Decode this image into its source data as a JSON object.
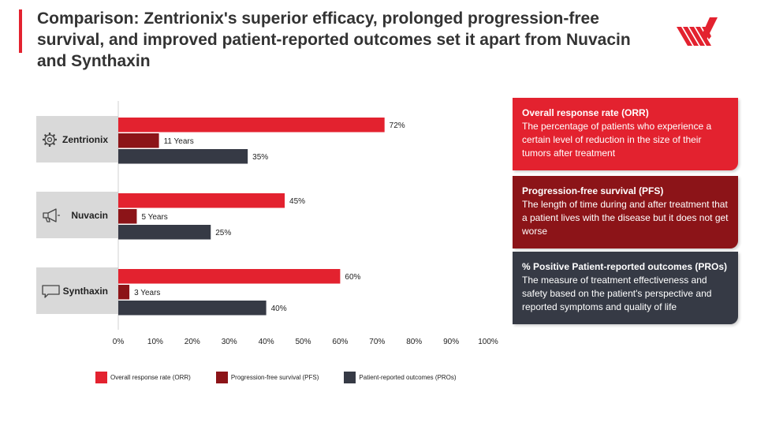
{
  "title": "Comparison: Zentrionix's superior efficacy, prolonged progression-free survival, and improved patient-reported outcomes set it apart from Nuvacin and Synthaxin",
  "colors": {
    "orr": "#e3222f",
    "pfs": "#8c1418",
    "pros": "#363a45",
    "category_bg": "#d9d9d9",
    "accent": "#e3222f"
  },
  "chart_data": {
    "type": "bar",
    "orientation": "horizontal",
    "categories": [
      {
        "name": "Zentrionix",
        "icon": "gear-icon"
      },
      {
        "name": "Nuvacin",
        "icon": "megaphone-icon"
      },
      {
        "name": "Synthaxin",
        "icon": "chat-bubble-icon"
      }
    ],
    "series": [
      {
        "name": "Overall response rate (ORR)",
        "values": [
          72,
          45,
          60
        ],
        "labels": [
          "72%",
          "45%",
          "60%"
        ]
      },
      {
        "name": "Progression-free survival (PFS)",
        "values": [
          11,
          5,
          3
        ],
        "labels": [
          "11 Years",
          "5 Years",
          "3 Years"
        ]
      },
      {
        "name": "Patient-reported outcomes (PROs)",
        "values": [
          35,
          25,
          40
        ],
        "labels": [
          "35%",
          "25%",
          "40%"
        ]
      }
    ],
    "xlim": [
      0,
      100
    ],
    "xticks": [
      "0%",
      "10%",
      "20%",
      "30%",
      "40%",
      "50%",
      "60%",
      "70%",
      "80%",
      "90%",
      "100%"
    ],
    "grid": false,
    "legend_position": "bottom"
  },
  "definitions": [
    {
      "title": "Overall response rate (ORR)",
      "text": "The percentage of patients who experience a certain level of reduction in the size of their tumors after treatment"
    },
    {
      "title": "Progression-free survival (PFS)",
      "text": "The length of time during and after treatment that a patient lives with the disease but it does not get worse"
    },
    {
      "title": "% Positive Patient-reported outcomes (PROs)",
      "text": "The measure of treatment effectiveness and safety based on the patient's perspective and reported symptoms and quality of life"
    }
  ]
}
